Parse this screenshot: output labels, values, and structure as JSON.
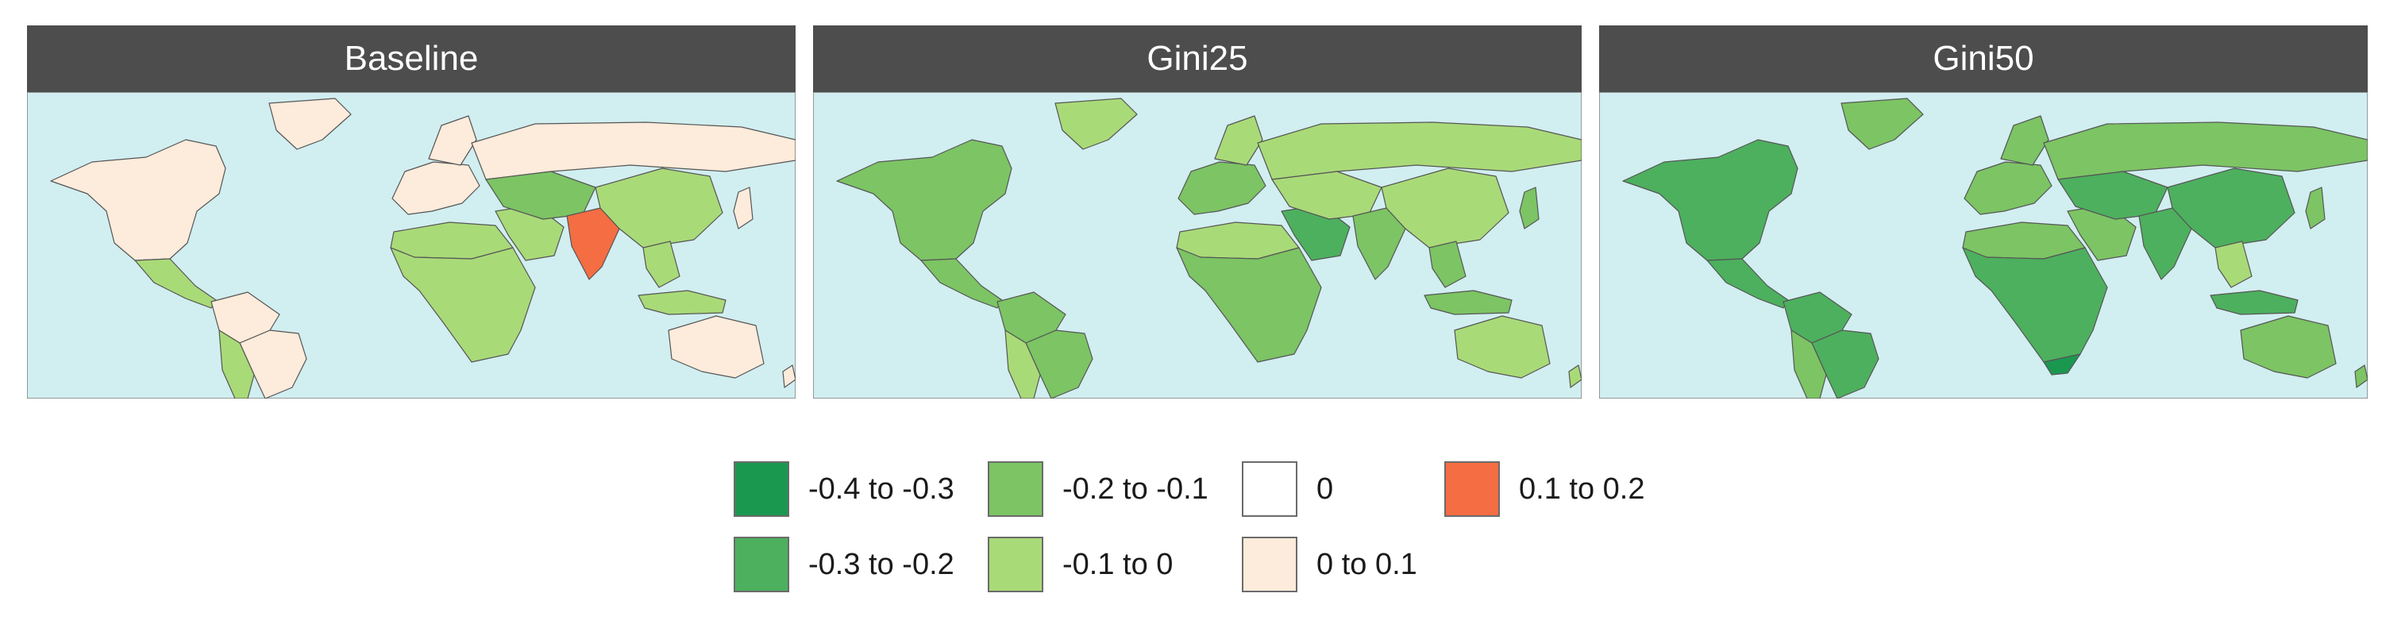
{
  "panels": [
    {
      "title": "Baseline",
      "regions": {
        "north_america": "0_to_0.1",
        "greenland": "0_to_0.1",
        "central_america": "-0.1_to_0",
        "south_america_north": "0_to_0.1",
        "brazil": "0_to_0.1",
        "south_america_south": "-0.1_to_0",
        "europe": "0_to_0.1",
        "scandinavia": "0_to_0.1",
        "russia": "0_to_0.1",
        "north_africa": "-0.1_to_0",
        "africa": "-0.1_to_0",
        "middle_east": "-0.1_to_0",
        "central_asia": "-0.2_to_-0.1",
        "india": "0.1_to_0.2",
        "china": "-0.1_to_0",
        "southeast_asia": "-0.1_to_0",
        "japan": "0_to_0.1",
        "indonesia": "-0.1_to_0",
        "australia": "0_to_0.1",
        "new_zealand": "0_to_0.1"
      }
    },
    {
      "title": "Gini25",
      "regions": {
        "north_america": "-0.2_to_-0.1",
        "greenland": "-0.1_to_0",
        "central_america": "-0.2_to_-0.1",
        "south_america_north": "-0.2_to_-0.1",
        "brazil": "-0.2_to_-0.1",
        "south_america_south": "-0.1_to_0",
        "europe": "-0.2_to_-0.1",
        "scandinavia": "-0.1_to_0",
        "russia": "-0.1_to_0",
        "north_africa": "-0.1_to_0",
        "africa": "-0.2_to_-0.1",
        "middle_east": "-0.3_to_-0.2",
        "central_asia": "-0.1_to_0",
        "india": "-0.2_to_-0.1",
        "china": "-0.1_to_0",
        "southeast_asia": "-0.2_to_-0.1",
        "japan": "-0.2_to_-0.1",
        "indonesia": "-0.2_to_-0.1",
        "australia": "-0.1_to_0",
        "new_zealand": "-0.1_to_0"
      }
    },
    {
      "title": "Gini50",
      "regions": {
        "north_america": "-0.3_to_-0.2",
        "greenland": "-0.2_to_-0.1",
        "central_america": "-0.3_to_-0.2",
        "south_america_north": "-0.3_to_-0.2",
        "brazil": "-0.3_to_-0.2",
        "south_america_south": "-0.2_to_-0.1",
        "europe": "-0.2_to_-0.1",
        "scandinavia": "-0.2_to_-0.1",
        "russia": "-0.2_to_-0.1",
        "north_africa": "-0.2_to_-0.1",
        "africa": "-0.3_to_-0.2",
        "south_africa": "-0.4_to_-0.3",
        "middle_east": "-0.2_to_-0.1",
        "central_asia": "-0.3_to_-0.2",
        "india": "-0.3_to_-0.2",
        "china": "-0.3_to_-0.2",
        "southeast_asia": "-0.1_to_0",
        "japan": "-0.2_to_-0.1",
        "indonesia": "-0.3_to_-0.2",
        "australia": "-0.2_to_-0.1",
        "new_zealand": "-0.2_to_-0.1"
      }
    }
  ],
  "legend": [
    {
      "key": "-0.4_to_-0.3",
      "label": "-0.4 to -0.3",
      "color": "#1a9850"
    },
    {
      "key": "-0.3_to_-0.2",
      "label": "-0.3 to -0.2",
      "color": "#4db05e"
    },
    {
      "key": "-0.2_to_-0.1",
      "label": "-0.2 to -0.1",
      "color": "#7cc464"
    },
    {
      "key": "-0.1_to_0",
      "label": "-0.1 to 0",
      "color": "#a9da78"
    },
    {
      "key": "0",
      "label": "0",
      "color": "#ffffff"
    },
    {
      "key": "0_to_0.1",
      "label": "0 to 0.1",
      "color": "#fdebdb"
    },
    {
      "key": "0.1_to_0.2",
      "label": "0.1 to 0.2",
      "color": "#f46d43"
    }
  ],
  "ocean_color": "#d1eef0",
  "border_color": "#555555"
}
